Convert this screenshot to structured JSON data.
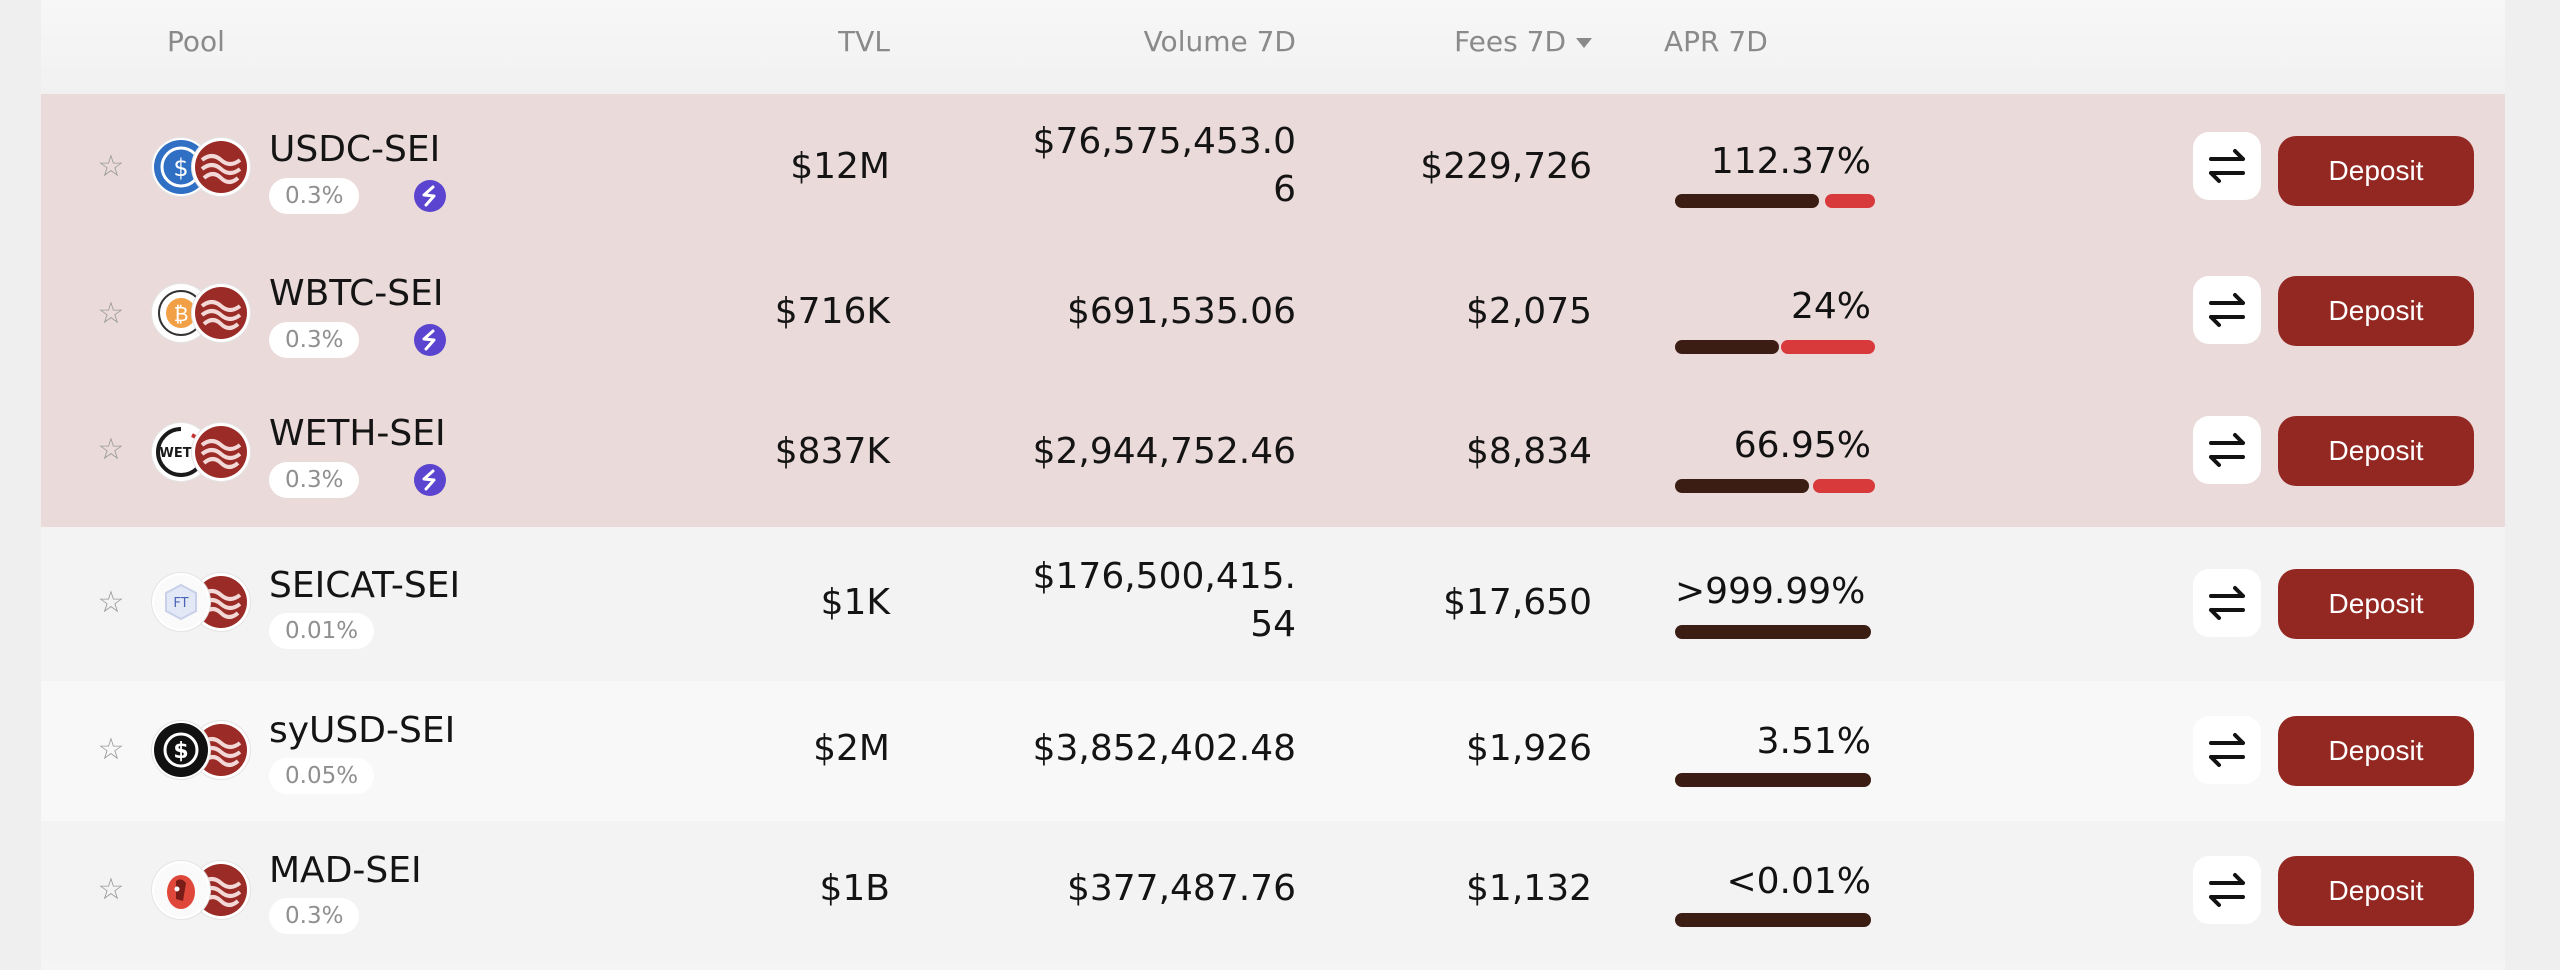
{
  "header": {
    "pool": "Pool",
    "tvl": "TVL",
    "volume": "Volume 7D",
    "fees": "Fees 7D",
    "apr": "APR 7D"
  },
  "pools": [
    {
      "name": "USDC-SEI",
      "fee": "0.3%",
      "tvl": "$12M",
      "volume": "$76,575,453.06",
      "fees": "$229,726",
      "apr": "112.37%",
      "base_token_icon": "usdc-icon",
      "sei_badge": true
    },
    {
      "name": "WBTC-SEI",
      "fee": "0.3%",
      "tvl": "$716K",
      "volume": "$691,535.06",
      "fees": "$2,075",
      "apr": "24%",
      "base_token_icon": "wbtc-icon",
      "sei_badge": true
    },
    {
      "name": "WETH-SEI",
      "fee": "0.3%",
      "tvl": "$837K",
      "volume": "$2,944,752.46",
      "fees": "$8,834",
      "apr": "66.95%",
      "base_token_icon": "weth-icon",
      "sei_badge": true
    },
    {
      "name": "SEICAT-SEI",
      "fee": "0.01%",
      "tvl": "$1K",
      "volume": "$176,500,415.54",
      "fees": "$17,650",
      "apr": ">999.99%",
      "base_token_icon": "seicat-icon",
      "sei_badge": false
    },
    {
      "name": "syUSD-SEI",
      "fee": "0.05%",
      "tvl": "$2M",
      "volume": "$3,852,402.48",
      "fees": "$1,926",
      "apr": "3.51%",
      "base_token_icon": "syusd-icon",
      "sei_badge": false
    },
    {
      "name": "MAD-SEI",
      "fee": "0.3%",
      "tvl": "$1B",
      "volume": "$377,487.76",
      "fees": "$1,132",
      "apr": "<0.01%",
      "base_token_icon": "mad-icon",
      "sei_badge": false
    }
  ],
  "actions": {
    "deposit_label": "Deposit"
  },
  "colors": {
    "accent": "#932823",
    "highlight_row": "#ebdada",
    "apr_base": "#3b1d14",
    "apr_boost": "#d8393a",
    "sei_badge": "#5b44cf"
  }
}
